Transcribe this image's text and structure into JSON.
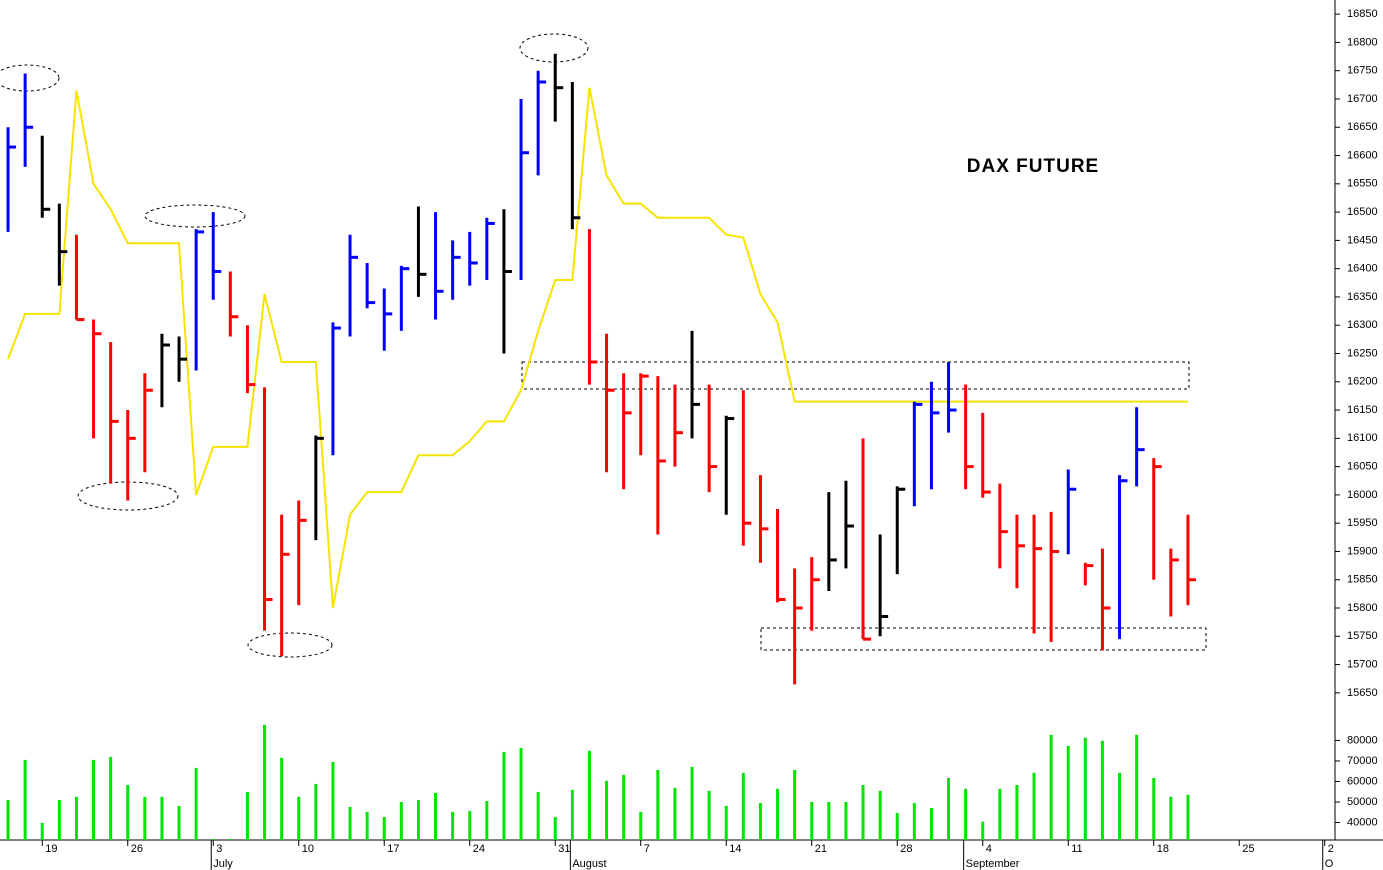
{
  "chart_data": [
    {
      "type": "ohlc",
      "title": "DAX FUTURE",
      "xlim": [
        -0.47,
        77.6
      ],
      "ylim": [
        15602,
        16875
      ],
      "yticks": [
        15650,
        15700,
        15750,
        15800,
        15850,
        15900,
        15950,
        16000,
        16050,
        16100,
        16150,
        16200,
        16250,
        16300,
        16350,
        16400,
        16450,
        16500,
        16550,
        16600,
        16650,
        16700,
        16750,
        16800,
        16850
      ],
      "bars": {
        "high": [
          16650,
          16745,
          16635,
          16515,
          16460,
          16310,
          16270,
          16150,
          16215,
          16285,
          16280,
          16470,
          16500,
          16395,
          16300,
          16190,
          15965,
          15990,
          16105,
          16305,
          16460,
          16410,
          16365,
          16405,
          16510,
          16500,
          16450,
          16465,
          16490,
          16505,
          16700,
          16750,
          16780,
          16730,
          16470,
          16285,
          16215,
          16215,
          16210,
          16195,
          16290,
          16195,
          16140,
          16185,
          16035,
          15975,
          15870,
          15890,
          16005,
          16025,
          16100,
          15930,
          16015,
          16165,
          16200,
          16235,
          16195,
          16145,
          16020,
          15965,
          15965,
          15970,
          16045,
          15880,
          15905,
          16035,
          16155,
          16065,
          15905,
          15965
        ],
        "low": [
          16465,
          16580,
          16490,
          16370,
          16310,
          16100,
          16020,
          15990,
          16040,
          16155,
          16200,
          16220,
          16345,
          16280,
          16180,
          15760,
          15715,
          15805,
          15920,
          16070,
          16280,
          16330,
          16255,
          16290,
          16350,
          16310,
          16345,
          16370,
          16380,
          16250,
          16380,
          16565,
          16660,
          16470,
          16195,
          16040,
          16010,
          16070,
          15930,
          16050,
          16100,
          16005,
          15965,
          15910,
          15880,
          15810,
          15665,
          15760,
          15830,
          15870,
          15745,
          15750,
          15860,
          15980,
          16010,
          16110,
          16010,
          15995,
          15870,
          15835,
          15755,
          15740,
          15895,
          15840,
          15725,
          15745,
          16015,
          15850,
          15785,
          15805
        ],
        "close": [
          16615,
          16650,
          16505,
          16430,
          16310,
          16285,
          16130,
          16100,
          16185,
          16265,
          16240,
          16465,
          16395,
          16315,
          16195,
          15815,
          15895,
          15955,
          16100,
          16295,
          16420,
          16340,
          16320,
          16400,
          16390,
          16360,
          16420,
          16410,
          16480,
          16395,
          16605,
          16730,
          16720,
          16490,
          16235,
          16185,
          16145,
          16210,
          16060,
          16110,
          16160,
          16050,
          16135,
          15950,
          15940,
          15815,
          15800,
          15850,
          15885,
          15945,
          15745,
          15785,
          16010,
          16160,
          16145,
          16150,
          16050,
          16005,
          15935,
          15910,
          15905,
          15900,
          16010,
          15875,
          15800,
          16025,
          16080,
          16050,
          15885,
          15850
        ],
        "colors": [
          "#0000ff",
          "#0000ff",
          "#000000",
          "#000000",
          "#ff0000",
          "#ff0000",
          "#ff0000",
          "#ff0000",
          "#ff0000",
          "#000000",
          "#000000",
          "#0000ff",
          "#0000ff",
          "#ff0000",
          "#ff0000",
          "#ff0000",
          "#ff0000",
          "#ff0000",
          "#000000",
          "#0000ff",
          "#0000ff",
          "#0000ff",
          "#0000ff",
          "#0000ff",
          "#000000",
          "#0000ff",
          "#0000ff",
          "#0000ff",
          "#0000ff",
          "#000000",
          "#0000ff",
          "#0000ff",
          "#000000",
          "#000000",
          "#ff0000",
          "#ff0000",
          "#ff0000",
          "#ff0000",
          "#ff0000",
          "#ff0000",
          "#000000",
          "#ff0000",
          "#000000",
          "#ff0000",
          "#ff0000",
          "#ff0000",
          "#ff0000",
          "#ff0000",
          "#000000",
          "#000000",
          "#ff0000",
          "#000000",
          "#000000",
          "#0000ff",
          "#0000ff",
          "#0000ff",
          "#ff0000",
          "#ff0000",
          "#ff0000",
          "#ff0000",
          "#ff0000",
          "#ff0000",
          "#0000ff",
          "#ff0000",
          "#ff0000",
          "#0000ff",
          "#0000ff",
          "#ff0000",
          "#ff0000",
          "#ff0000"
        ]
      },
      "line": {
        "color": "#f5e400",
        "values": [
          16240,
          16320,
          16320,
          16320,
          16715,
          16550,
          16505,
          16445,
          16445,
          16445,
          16445,
          16000,
          16085,
          16085,
          16085,
          16355,
          16235,
          16235,
          16235,
          15800,
          15965,
          16005,
          16005,
          16005,
          16070,
          16070,
          16070,
          16095,
          16130,
          16130,
          16185,
          16290,
          16380,
          16380,
          16720,
          16565,
          16515,
          16515,
          16490,
          16490,
          16490,
          16490,
          16460,
          16455,
          16355,
          16305,
          16165,
          16165,
          16165,
          16165,
          16165,
          16165,
          16165,
          16165,
          16165,
          16165,
          16165,
          16165,
          16165,
          16165,
          16165,
          16165,
          16165,
          16165,
          16165,
          16165,
          16165,
          16165,
          16165,
          16165
        ]
      }
    },
    {
      "type": "bar",
      "color": "#00e600",
      "xlim": [
        -0.47,
        77.6
      ],
      "ylim": [
        31500,
        88000
      ],
      "yticks": [
        40000,
        50000,
        60000,
        70000,
        80000
      ],
      "values": [
        51000,
        70500,
        39800,
        51000,
        52500,
        70500,
        72000,
        58300,
        52500,
        52500,
        48100,
        66600,
        32000,
        32000,
        54900,
        87600,
        71500,
        52500,
        58800,
        69500,
        47600,
        45200,
        42700,
        50000,
        51000,
        54400,
        45200,
        45600,
        50500,
        74400,
        76400,
        54900,
        42700,
        55900,
        74900,
        60300,
        63200,
        45200,
        65600,
        56900,
        67100,
        55400,
        48100,
        64200,
        49500,
        56400,
        65600,
        50000,
        50000,
        50000,
        58300,
        55400,
        44700,
        49500,
        47100,
        61700,
        56400,
        40400,
        56400,
        58300,
        64200,
        82700,
        77300,
        81300,
        79800,
        64200,
        82700,
        61700,
        52500,
        53500
      ],
      "xticks": [
        {
          "value": 2,
          "label": "19"
        },
        {
          "value": 7,
          "label": "26"
        },
        {
          "value": 12,
          "label": "3"
        },
        {
          "value": 17,
          "label": "10"
        },
        {
          "value": 22,
          "label": "17"
        },
        {
          "value": 27,
          "label": "24"
        },
        {
          "value": 32,
          "label": "31"
        },
        {
          "value": 37,
          "label": "7"
        },
        {
          "value": 42,
          "label": "14"
        },
        {
          "value": 47,
          "label": "21"
        },
        {
          "value": 52,
          "label": "28"
        },
        {
          "value": 57,
          "label": "4"
        },
        {
          "value": 62,
          "label": "11"
        },
        {
          "value": 67,
          "label": "18"
        },
        {
          "value": 72,
          "label": "25"
        },
        {
          "value": 77,
          "label": "2"
        }
      ],
      "months": [
        {
          "value": 12,
          "label": "July"
        },
        {
          "value": 33,
          "label": "August"
        },
        {
          "value": 56,
          "label": "September"
        },
        {
          "value": 77,
          "label": "O"
        }
      ]
    }
  ]
}
